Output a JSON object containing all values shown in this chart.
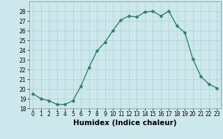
{
  "title": "",
  "xlabel": "Humidex (Indice chaleur)",
  "hours": [
    0,
    1,
    2,
    3,
    4,
    5,
    6,
    7,
    8,
    9,
    10,
    11,
    12,
    13,
    14,
    15,
    16,
    17,
    18,
    19,
    20,
    21,
    22,
    23
  ],
  "values": [
    19.5,
    19.0,
    18.8,
    18.4,
    18.4,
    18.8,
    20.3,
    22.2,
    23.9,
    24.8,
    26.0,
    27.1,
    27.5,
    27.4,
    27.9,
    28.0,
    27.5,
    28.0,
    26.5,
    25.8,
    23.1,
    21.3,
    20.5,
    20.1
  ],
  "line_color": "#2e7d6e",
  "marker": "o",
  "markersize": 2.2,
  "linewidth": 1.0,
  "ylim": [
    18,
    29
  ],
  "yticks": [
    18,
    19,
    20,
    21,
    22,
    23,
    24,
    25,
    26,
    27,
    28
  ],
  "bg_color": "#cde8ec",
  "grid_color": "#aecfd4",
  "tick_fontsize": 5.5,
  "xlabel_fontsize": 7.5
}
